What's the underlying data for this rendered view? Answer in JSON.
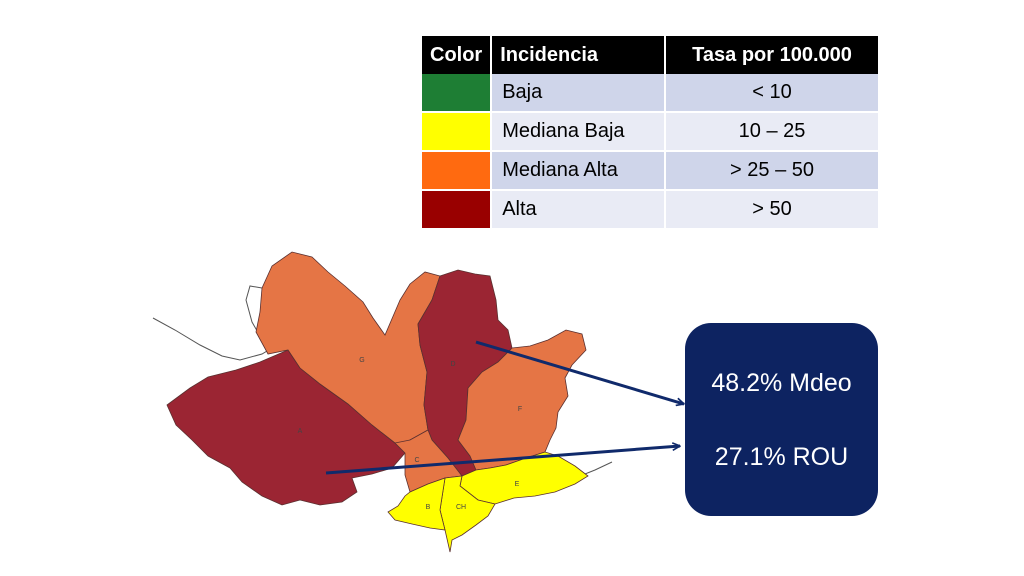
{
  "legend": {
    "headers": [
      "Color",
      "Incidencia",
      "Tasa por 100.000"
    ],
    "rows": [
      {
        "color": "#1e7e34",
        "label": "Baja",
        "range": "< 10"
      },
      {
        "color": "#ffff00",
        "label": "Mediana Baja",
        "range": "10 – 25"
      },
      {
        "color": "#ff6a10",
        "label": "Mediana Alta",
        "range": "> 25 – 50"
      },
      {
        "color": "#990000",
        "label": "Alta",
        "range": "> 50"
      }
    ]
  },
  "map": {
    "fill_colors": {
      "alta": "#9b2533",
      "mediana_alta": "#e57545",
      "mediana_baja": "#ffff00"
    },
    "arrow_color": "#102a6b",
    "zone_labels": [
      "G",
      "D",
      "F",
      "A",
      "C",
      "E",
      "B",
      "CH"
    ]
  },
  "stats": {
    "mdeo": "48.2% Mdeo",
    "rou": "27.1% ROU"
  }
}
